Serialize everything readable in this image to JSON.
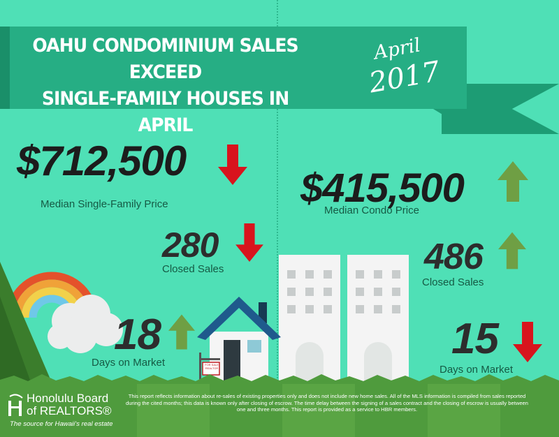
{
  "banner": {
    "title_line1": "OAHU CONDOMINIUM SALES EXCEED",
    "title_line2": "SINGLE-FAMILY HOUSES IN APRIL",
    "date_month": "April",
    "date_year": "2017"
  },
  "single_family": {
    "median_price": "$712,500",
    "median_price_label": "Median Single-Family Price",
    "median_price_trend": "down",
    "closed_sales": "280",
    "closed_sales_label": "Closed Sales",
    "closed_sales_trend": "down",
    "days_on_market": "18",
    "days_on_market_label": "Days on Market",
    "days_on_market_trend": "up"
  },
  "condo": {
    "median_price": "$415,500",
    "median_price_label": "Median Condo Price",
    "median_price_trend": "up",
    "closed_sales": "486",
    "closed_sales_label": "Closed Sales",
    "closed_sales_trend": "up",
    "days_on_market": "15",
    "days_on_market_label": "Days on Market",
    "days_on_market_trend": "down"
  },
  "sign": {
    "line1": "FOR SALE",
    "line2": "REALTOR"
  },
  "footer": {
    "logo_line1": "Honolulu Board",
    "logo_line2": "of REALTORS®",
    "logo_tagline": "The source for Hawaii's real estate",
    "disclaimer": "This report reflects information about re-sales of existing properties only and does not include new home sales. All of the MLS information is compiled from sales reported during the cited months; this data is known only after closing of escrow. The time delay between the signing of a sales contract and the closing of escrow is usually between one and three months. This report is provided as a service to HBR members."
  },
  "colors": {
    "background": "#4fe0b6",
    "banner": "#26ae84",
    "up_arrow": "#6f9f44",
    "down_arrow": "#d8141d",
    "footer": "#4f9b3d"
  },
  "icons": [
    "down-arrow-icon",
    "up-arrow-icon",
    "rainbow-icon",
    "cloud-icon",
    "house-icon",
    "condo-building-icon",
    "for-sale-sign-icon",
    "hbr-logo-icon"
  ]
}
